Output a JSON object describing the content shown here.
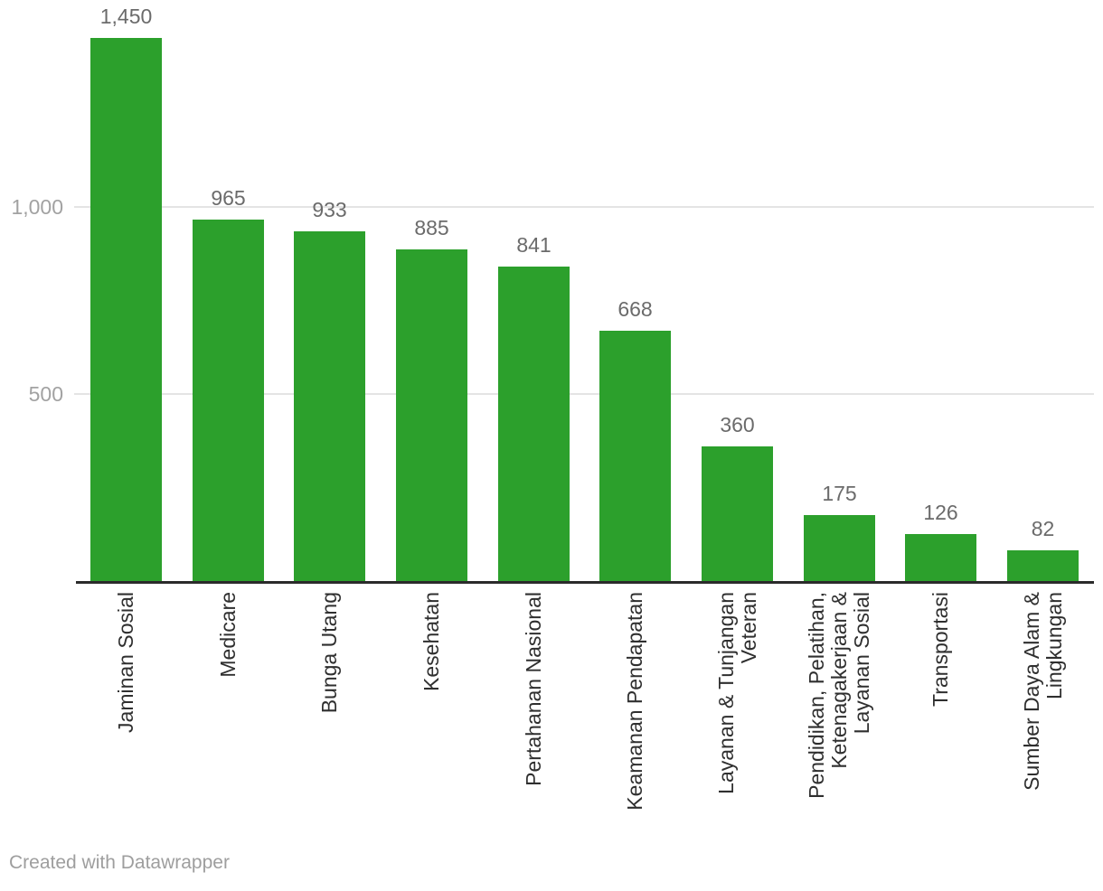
{
  "chart_data": {
    "type": "bar",
    "categories": [
      "Jaminan Sosial",
      "Medicare",
      "Bunga Utang",
      "Kesehatan",
      "Pertahanan Nasional",
      "Keamanan Pendapatan",
      "Layanan & Tunjangan Veteran",
      "Pendidikan, Pelatihan, Ketenagakerjaan & Layanan Sosial",
      "Transportasi",
      "Sumber Daya Alam & Lingkungan"
    ],
    "category_lines": [
      [
        "Jaminan Sosial"
      ],
      [
        "Medicare"
      ],
      [
        "Bunga Utang"
      ],
      [
        "Kesehatan"
      ],
      [
        "Pertahanan Nasional"
      ],
      [
        "Keamanan Pendapatan"
      ],
      [
        "Layanan & Tunjangan",
        "Veteran"
      ],
      [
        "Pendidikan, Pelatihan,",
        "Ketenagakerjaan &",
        "Layanan Sosial"
      ],
      [
        "Transportasi"
      ],
      [
        "Sumber Daya Alam &",
        "Lingkungan"
      ]
    ],
    "values": [
      1450,
      965,
      933,
      885,
      841,
      668,
      360,
      175,
      126,
      82
    ],
    "value_labels": [
      "1,450",
      "965",
      "933",
      "885",
      "841",
      "668",
      "360",
      "175",
      "126",
      "82"
    ],
    "title": "",
    "xlabel": "",
    "ylabel": "",
    "ylim": [
      0,
      1550
    ],
    "yticks": [
      {
        "value": 500,
        "label": "500"
      },
      {
        "value": 1000,
        "label": "1,000"
      }
    ],
    "grid": "horizontal-only",
    "legend": "none",
    "bar_color": "#2ca02c"
  },
  "colors": {
    "bar": "#2ca02c",
    "axis": "#2b2b2b",
    "gridline": "#e4e4e4",
    "tick_text": "#a2a2a2",
    "value_text": "#6b6b6b",
    "category_text": "#2f2f2f",
    "credit_text": "#9e9e9e"
  },
  "footer": {
    "credit": "Created with Datawrapper"
  }
}
